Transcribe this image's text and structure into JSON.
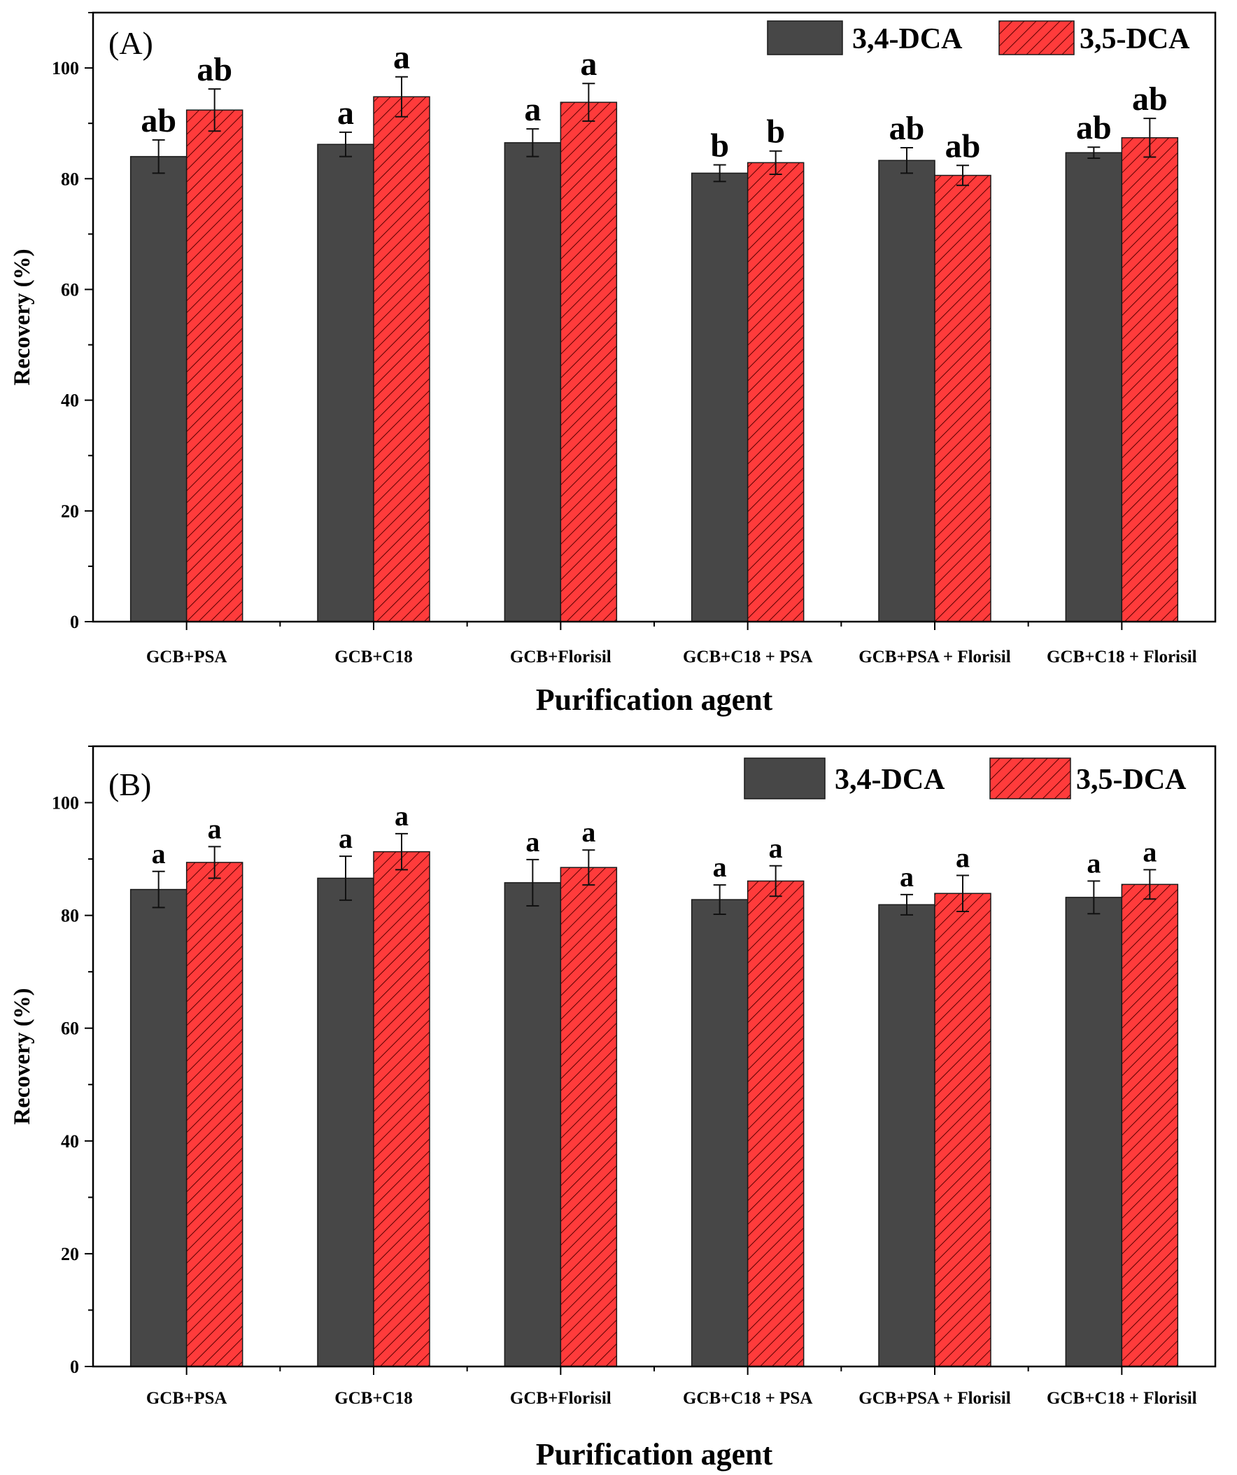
{
  "colors": {
    "series_3_4_DCA": "#474747",
    "series_3_5_DCA": "#ff3b3b",
    "hatch": "#5a0000",
    "axis": "#000000"
  },
  "chart_data": [
    {
      "type": "bar",
      "panel": "(A)",
      "xlabel": "Purification agent",
      "ylabel": "Recovery (%)",
      "ylim": [
        0,
        110
      ],
      "yticks": [
        0,
        20,
        40,
        60,
        80,
        100
      ],
      "legend_position": "top-right",
      "categories": [
        "GCB+PSA",
        "GCB+C18",
        "GCB+Florisil",
        "GCB+C18 + PSA",
        "GCB+PSA + Florisil",
        "GCB+C18 + Florisil"
      ],
      "series": [
        {
          "name": "3,4-DCA",
          "values": [
            84.0,
            86.2,
            86.5,
            81.0,
            83.3,
            84.7
          ],
          "errors": [
            3.0,
            2.2,
            2.5,
            1.5,
            2.3,
            1.0
          ],
          "letters": [
            "ab",
            "a",
            "a",
            "b",
            "ab",
            "ab"
          ]
        },
        {
          "name": "3,5-DCA",
          "values": [
            92.4,
            94.8,
            93.8,
            82.9,
            80.6,
            87.4
          ],
          "errors": [
            3.8,
            3.6,
            3.4,
            2.1,
            1.8,
            3.5
          ],
          "letters": [
            "ab",
            "a",
            "a",
            "b",
            "ab",
            "ab"
          ]
        }
      ]
    },
    {
      "type": "bar",
      "panel": "(B)",
      "xlabel": "Purification agent",
      "ylabel": "Recovery (%)",
      "ylim": [
        0,
        110
      ],
      "yticks": [
        0,
        20,
        40,
        60,
        80,
        100
      ],
      "legend_position": "top-right",
      "categories": [
        "GCB+PSA",
        "GCB+C18",
        "GCB+Florisil",
        "GCB+C18 + PSA",
        "GCB+PSA + Florisil",
        "GCB+C18 + Florisil"
      ],
      "series": [
        {
          "name": "3,4-DCA",
          "values": [
            84.6,
            86.6,
            85.8,
            82.8,
            81.9,
            83.2
          ],
          "errors": [
            3.2,
            3.9,
            4.1,
            2.6,
            1.8,
            2.9
          ],
          "letters": [
            "a",
            "a",
            "a",
            "a",
            "a",
            "a"
          ]
        },
        {
          "name": "3,5-DCA",
          "values": [
            89.4,
            91.3,
            88.5,
            86.1,
            83.9,
            85.5
          ],
          "errors": [
            2.8,
            3.2,
            3.1,
            2.7,
            3.2,
            2.6
          ],
          "letters": [
            "a",
            "a",
            "a",
            "a",
            "a",
            "a"
          ]
        }
      ]
    }
  ]
}
